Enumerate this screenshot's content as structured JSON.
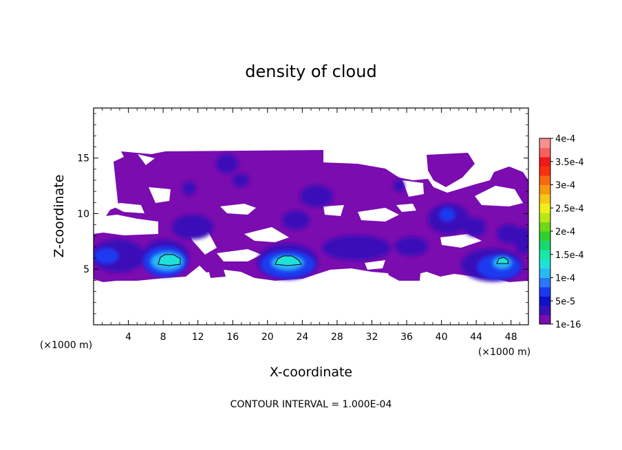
{
  "chart_data": {
    "type": "heatmap",
    "title": "density of cloud",
    "xlabel": "X-coordinate",
    "ylabel": "Z-coordinate",
    "x_unit": "(×1000 m)",
    "z_unit": "(×1000 m)",
    "xlim": [
      0,
      50
    ],
    "ylim": [
      0,
      19.5
    ],
    "x_ticks": [
      "4",
      "8",
      "12",
      "16",
      "20",
      "24",
      "28",
      "32",
      "36",
      "40",
      "44",
      "48"
    ],
    "y_ticks": [
      "5",
      "10",
      "15"
    ],
    "footer": "CONTOUR INTERVAL = 1.000E-04",
    "colorbar": {
      "labels": [
        "1e-16",
        "5e-5",
        "1e-4",
        "1.5e-4",
        "2e-4",
        "2.5e-4",
        "3e-4",
        "3.5e-4",
        "4e-4"
      ],
      "colors": [
        "#7a0cb0",
        "#3a10b8",
        "#1010c8",
        "#1a3af0",
        "#2a78f8",
        "#28b8f4",
        "#20e0d8",
        "#18e8a8",
        "#18d870",
        "#30d030",
        "#70d818",
        "#b8e818",
        "#f0f018",
        "#f8c818",
        "#f89810",
        "#f86810",
        "#f83010",
        "#f01818",
        "#f86060",
        "#f89090"
      ]
    },
    "cloud_cores": [
      {
        "x": 8.5,
        "z": 6.0,
        "level": "1e-4"
      },
      {
        "x": 22.0,
        "z": 6.0,
        "level": "1e-4"
      },
      {
        "x": 47.0,
        "z": 6.0,
        "level": "1e-4"
      }
    ],
    "cloud_extent_z": [
      4,
      16
    ]
  }
}
